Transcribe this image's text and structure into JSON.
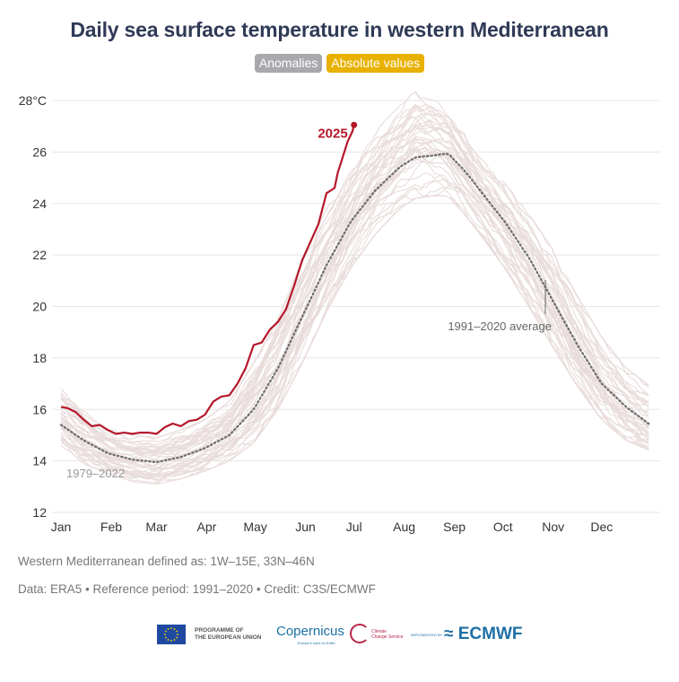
{
  "header": {
    "title": "Daily sea surface temperature in western Mediterranean",
    "toggles": [
      {
        "label": "Anomalies",
        "active": false
      },
      {
        "label": "Absolute values",
        "active": true
      }
    ]
  },
  "notes": {
    "region": "Western Mediterranean defined as: 1W–15E, 33N–46N",
    "credit": "Data: ERA5 • Reference period: 1991–2020 • Credit: C3S/ECMWF"
  },
  "logos": {
    "eu": "PROGRAMME OF THE EUROPEAN UNION",
    "eu_line1": "PROGRAMME OF",
    "eu_line2": "THE EUROPEAN UNION",
    "copernicus": "opernicus",
    "copernicus_sub": "Europe's eyes on Earth",
    "c3s_line1": "Climate",
    "c3s_line2": "Change Service",
    "implemented_by": "IMPLEMENTED BY",
    "ecmwf": "ECMWF"
  },
  "colors": {
    "highlight": "#b5172a",
    "history": "#e8dcda",
    "average": "#6b6b6b",
    "grid": "#e6e6e6",
    "title": "#2f3a56",
    "toggle_off": "#a8a9ad",
    "toggle_on": "#e8b100"
  },
  "chart_data": {
    "type": "line",
    "title": "Daily sea surface temperature in western Mediterranean",
    "xlabel": "",
    "ylabel": "",
    "y_unit_label": "28°C",
    "ylim": [
      12,
      28
    ],
    "yticks": [
      12,
      14,
      16,
      18,
      20,
      22,
      24,
      26,
      28
    ],
    "ytick_labels": [
      "12",
      "14",
      "16",
      "18",
      "20",
      "22",
      "24",
      "26",
      "28°C"
    ],
    "x_unit": "day of year",
    "xlim": [
      1,
      365
    ],
    "months": [
      "Jan",
      "Feb",
      "Mar",
      "Apr",
      "May",
      "Jun",
      "Jul",
      "Aug",
      "Sep",
      "Oct",
      "Nov",
      "Dec"
    ],
    "month_start_days": [
      1,
      32,
      60,
      91,
      121,
      152,
      182,
      213,
      244,
      274,
      305,
      335
    ],
    "grid": true,
    "annotations": [
      {
        "text": "2025",
        "target": "highlight-series"
      },
      {
        "text": "1979–2022",
        "target": "history-band"
      },
      {
        "text": "1991–2020 average",
        "target": "average-series"
      }
    ],
    "series": [
      {
        "name": "2025",
        "style": "solid-bold",
        "x": [
          1,
          5,
          10,
          15,
          20,
          25,
          30,
          35,
          40,
          45,
          50,
          55,
          60,
          65,
          70,
          75,
          80,
          85,
          90,
          95,
          100,
          105,
          110,
          115,
          120,
          125,
          130,
          135,
          140,
          145,
          150,
          155,
          160,
          165,
          170,
          172,
          175,
          178,
          181,
          182
        ],
        "values": [
          16.1,
          16.05,
          15.9,
          15.6,
          15.35,
          15.4,
          15.2,
          15.05,
          15.1,
          15.05,
          15.1,
          15.1,
          15.05,
          15.3,
          15.45,
          15.35,
          15.55,
          15.6,
          15.8,
          16.3,
          16.5,
          16.55,
          17.0,
          17.6,
          18.5,
          18.6,
          19.1,
          19.4,
          19.9,
          20.8,
          21.8,
          22.5,
          23.2,
          24.4,
          24.6,
          25.2,
          25.8,
          26.4,
          26.8,
          27.05
        ]
      },
      {
        "name": "1991–2020 average",
        "style": "dotted",
        "x": [
          1,
          15,
          30,
          45,
          60,
          75,
          90,
          105,
          120,
          135,
          150,
          165,
          180,
          195,
          210,
          220,
          230,
          240,
          250,
          260,
          275,
          290,
          305,
          320,
          335,
          350,
          365
        ],
        "values": [
          15.4,
          14.8,
          14.3,
          14.05,
          13.95,
          14.15,
          14.5,
          15.0,
          16.0,
          17.6,
          19.6,
          21.6,
          23.3,
          24.5,
          25.4,
          25.8,
          25.85,
          25.95,
          25.3,
          24.5,
          23.3,
          21.9,
          20.2,
          18.5,
          17.0,
          16.1,
          15.4
        ]
      }
    ],
    "history_band": {
      "name": "1979–2022",
      "years": 44,
      "x": [
        1,
        15,
        30,
        45,
        60,
        75,
        90,
        105,
        120,
        135,
        150,
        165,
        180,
        195,
        210,
        220,
        230,
        240,
        250,
        260,
        275,
        290,
        305,
        320,
        335,
        350,
        365
      ],
      "min": [
        14.6,
        13.9,
        13.5,
        13.2,
        13.1,
        13.3,
        13.6,
        14.0,
        14.7,
        16.0,
        17.8,
        19.8,
        21.5,
        22.8,
        23.8,
        24.2,
        24.3,
        24.3,
        23.6,
        22.8,
        21.5,
        20.0,
        18.4,
        16.9,
        15.6,
        14.8,
        14.4
      ],
      "max": [
        16.8,
        16.0,
        15.3,
        15.0,
        14.9,
        15.2,
        15.6,
        16.3,
        17.8,
        19.5,
        21.8,
        23.8,
        25.4,
        26.8,
        27.8,
        28.4,
        28.1,
        27.6,
        26.8,
        25.8,
        24.8,
        23.6,
        22.2,
        20.4,
        18.8,
        17.6,
        16.9
      ]
    }
  }
}
